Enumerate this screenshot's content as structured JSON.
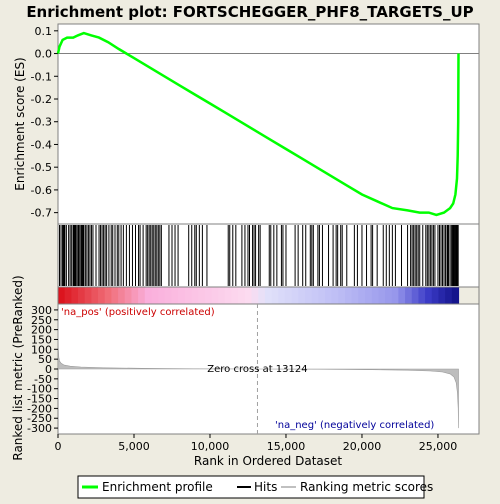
{
  "chart_data": {
    "type": "line",
    "title": "Enrichment plot: FORTSCHEGGER_PHF8_TARGETS_UP",
    "xlabel": "Rank in Ordered Dataset",
    "x_ticks": [
      "0",
      "5,000",
      "10,000",
      "15,000",
      "20,000",
      "25,000"
    ],
    "x_tick_values": [
      0,
      5000,
      10000,
      15000,
      20000,
      25000
    ],
    "xlim": [
      0,
      27700
    ],
    "es_panel": {
      "ylabel": "Enrichment score (ES)",
      "ylim": [
        -0.75,
        0.13
      ],
      "y_ticks": [
        "0.1",
        "0.0",
        "-0.1",
        "-0.2",
        "-0.3",
        "-0.4",
        "-0.5",
        "-0.6",
        "-0.7"
      ],
      "y_tick_values": [
        0.1,
        0.0,
        -0.1,
        -0.2,
        -0.3,
        -0.4,
        -0.5,
        -0.6,
        -0.7
      ],
      "series": [
        {
          "name": "Enrichment profile",
          "color": "#00ff00",
          "x": [
            0,
            100,
            300,
            600,
            1000,
            1300,
            1700,
            2200,
            2700,
            3300,
            4000,
            5000,
            6000,
            7000,
            8000,
            9000,
            10000,
            11000,
            12000,
            13000,
            14000,
            15000,
            16000,
            17000,
            18000,
            19000,
            20000,
            21000,
            22000,
            23000,
            23800,
            24400,
            24900,
            25400,
            25800,
            26000,
            26150,
            26250,
            26300,
            26330,
            26350
          ],
          "y": [
            0.0,
            0.03,
            0.06,
            0.07,
            0.07,
            0.08,
            0.09,
            0.08,
            0.07,
            0.05,
            0.02,
            -0.02,
            -0.06,
            -0.1,
            -0.14,
            -0.18,
            -0.22,
            -0.26,
            -0.3,
            -0.34,
            -0.38,
            -0.42,
            -0.46,
            -0.5,
            -0.54,
            -0.58,
            -0.62,
            -0.65,
            -0.68,
            -0.69,
            -0.7,
            -0.7,
            -0.71,
            -0.7,
            -0.68,
            -0.66,
            -0.62,
            -0.55,
            -0.45,
            -0.3,
            0.0
          ]
        }
      ]
    },
    "hits_panel": {
      "legend_name": "Hits",
      "positions": [
        100,
        200,
        300,
        350,
        400,
        450,
        550,
        700,
        800,
        900,
        1000,
        1050,
        1100,
        1150,
        1200,
        1300,
        1350,
        1400,
        1500,
        1550,
        1600,
        1650,
        1700,
        1800,
        1900,
        2000,
        2100,
        2200,
        2300,
        2500,
        2700,
        2800,
        2900,
        3000,
        3100,
        3200,
        3350,
        3500,
        3600,
        3750,
        3900,
        4000,
        4150,
        4300,
        4500,
        4700,
        4900,
        5100,
        5300,
        5400,
        5600,
        5800,
        5900,
        6000,
        6100,
        6200,
        6300,
        6400,
        6500,
        6600,
        6700,
        6800,
        7300,
        7500,
        7700,
        7900,
        8600,
        8800,
        9000,
        9100,
        9300,
        9500,
        9800,
        11200,
        11300,
        11500,
        11700,
        12100,
        12300,
        12500,
        12600,
        12800,
        12900,
        13000,
        13200,
        13300,
        13900,
        14000,
        14200,
        14400,
        14700,
        14800,
        15000,
        15600,
        15800,
        16100,
        16300,
        16600,
        16700,
        16800,
        17100,
        17200,
        17400,
        17800,
        18100,
        18300,
        18400,
        18600,
        18700,
        19000,
        19500,
        19700,
        20000,
        20300,
        20600,
        20700,
        21000,
        21400,
        21600,
        21800,
        22000,
        22200,
        22600,
        23000,
        23200,
        23300,
        23400,
        23500,
        23600,
        23700,
        23800,
        24000,
        24200,
        24300,
        24400,
        24500,
        24600,
        24700,
        24800,
        25000,
        25100,
        25200,
        25300,
        25400,
        25500,
        25600,
        25650,
        25700,
        25800,
        25900,
        25950,
        26000,
        26050,
        26100,
        26150,
        26200,
        26250,
        26300,
        26330
      ]
    },
    "metric_panel": {
      "ylabel": "Ranked list metric (PreRanked)",
      "legend_name": "Ranking metric scores",
      "ylim": [
        -330,
        330
      ],
      "y_ticks": [
        "300",
        "250",
        "200",
        "150",
        "100",
        "50",
        "0",
        "-50",
        "-100",
        "-150",
        "-200",
        "-250",
        "-300"
      ],
      "y_tick_values": [
        300,
        250,
        200,
        150,
        100,
        50,
        0,
        -50,
        -100,
        -150,
        -200,
        -250,
        -300
      ],
      "x": [
        0,
        20,
        50,
        100,
        200,
        400,
        800,
        1500,
        3000,
        6000,
        9000,
        13124,
        17000,
        20000,
        23000,
        24500,
        25300,
        25800,
        26050,
        26200,
        26280,
        26330,
        26350
      ],
      "y": [
        300,
        110,
        60,
        40,
        30,
        20,
        14,
        10,
        6,
        3,
        1,
        0,
        -1,
        -3,
        -6,
        -10,
        -15,
        -25,
        -40,
        -70,
        -120,
        -200,
        -300
      ],
      "zero_cross_label": "Zero cross at 13124",
      "zero_cross": 13124,
      "pos_label": "'na_pos' (positively correlated)",
      "neg_label": "'na_neg' (negatively correlated)"
    },
    "legend": {
      "placement": "bottom",
      "items": [
        "Enrichment profile",
        "Hits",
        "Ranking metric scores"
      ]
    },
    "grid": false
  }
}
